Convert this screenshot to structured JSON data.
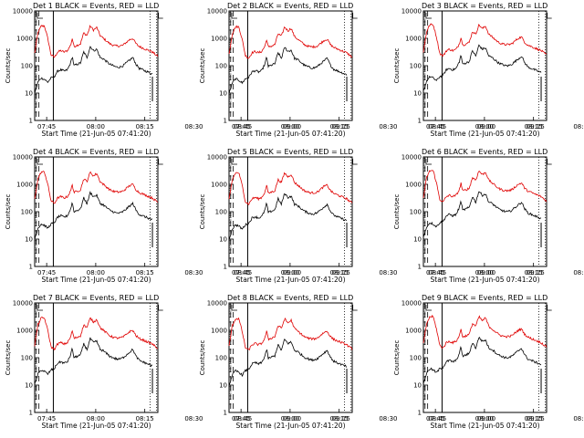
{
  "chart_data": {
    "type": "line",
    "layout": {
      "rows": 3,
      "cols": 3
    },
    "xlabel": "Start Time (21-Jun-05 07:41:20)",
    "ylabel": "Counts/sec",
    "xscale": "linear",
    "yscale": "log",
    "ylim": [
      1,
      10000
    ],
    "xlim": [
      "07:41:20",
      "08:19:00"
    ],
    "x_ticks": [
      "07:45",
      "08:00",
      "08:15",
      "08:30",
      "08:45",
      "09:00",
      "09:15"
    ],
    "y_ticks": [
      "1",
      "10",
      "100",
      "1000",
      "10000"
    ],
    "legend_text": "BLACK = Events, RED = LLD",
    "series_colors": {
      "events": "#000000",
      "lld": "#e00000"
    },
    "grid": false,
    "panels": [
      {
        "title": "Det 1",
        "detector": 1
      },
      {
        "title": "Det 2",
        "detector": 2
      },
      {
        "title": "Det 3",
        "detector": 3
      },
      {
        "title": "Det 4",
        "detector": 4
      },
      {
        "title": "Det 5",
        "detector": 5
      },
      {
        "title": "Det 6",
        "detector": 6
      },
      {
        "title": "Det 7",
        "detector": 7
      },
      {
        "title": "Det 8",
        "detector": 8
      },
      {
        "title": "Det 9",
        "detector": 9
      }
    ]
  }
}
